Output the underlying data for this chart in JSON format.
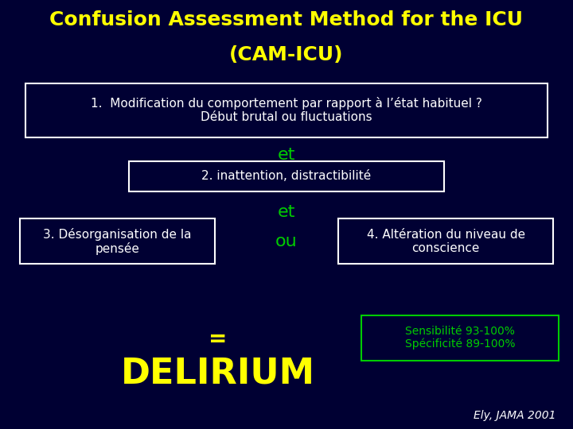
{
  "bg_color": "#000033",
  "title_line1": "Confusion Assessment Method for the ICU",
  "title_line2": "(CAM-ICU)",
  "title_color": "#ffff00",
  "title_fontsize": 18,
  "box1_text": "1.  Modification du comportement par rapport à l’état habituel ?\nDébut brutal ou fluctuations",
  "box1_color": "#ffffff",
  "box1_bg": "#000033",
  "box1_edge": "#ffffff",
  "et1_text": "et",
  "et_color": "#00cc00",
  "et_fontsize": 16,
  "box2_text": "2. inattention, distractibilité",
  "box2_color": "#ffffff",
  "box2_bg": "#000033",
  "box2_edge": "#ffffff",
  "et2_text": "et",
  "ou_text": "ou",
  "ou_color": "#00cc00",
  "ou_fontsize": 16,
  "box3_text": "3. Désorganisation de la\npensée",
  "box3_color": "#ffffff",
  "box3_bg": "#000033",
  "box3_edge": "#ffffff",
  "box4_text": "4. Altération du niveau de\nconscience",
  "box4_color": "#ffffff",
  "box4_bg": "#000033",
  "box4_edge": "#ffffff",
  "equals_text": "=",
  "equals_color": "#ffff00",
  "equals_fontsize": 20,
  "delirium_text": "DELIRIUM",
  "delirium_color": "#ffff00",
  "delirium_fontsize": 32,
  "sens_text": "Sensibilité 93-100%\nSpécificité 89-100%",
  "sens_color": "#00cc00",
  "sens_bg": "#000033",
  "sens_edge": "#00cc00",
  "sens_fontsize": 10,
  "citation_text": "Ely, JAMA 2001",
  "citation_color": "#ffffff",
  "citation_fontsize": 10,
  "body_fontsize": 11
}
